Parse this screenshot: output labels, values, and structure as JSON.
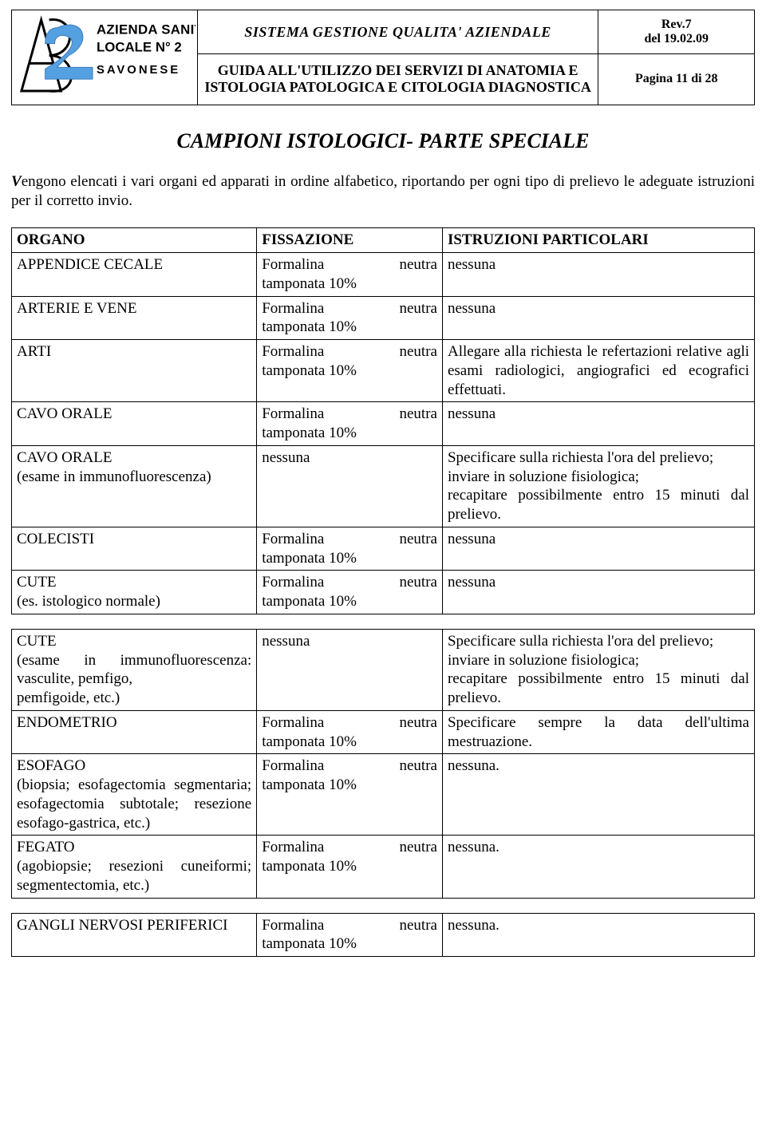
{
  "header": {
    "logo": {
      "line1": "AZIENDA SANITARIA",
      "line2": "LOCALE N° 2",
      "line3": "SAVONESE"
    },
    "system_title": "SISTEMA GESTIONE  QUALITA' AZIENDALE",
    "guide_title_line1": "GUIDA ALL'UTILIZZO DEI SERVIZI DI ANATOMIA E",
    "guide_title_line2": "ISTOLOGIA PATOLOGICA E CITOLOGIA DIAGNOSTICA",
    "rev": "Rev.7",
    "rev_date": "del 19.02.09",
    "page": "Pagina 11 di 28"
  },
  "main_title": "CAMPIONI ISTOLOGICI- PARTE SPECIALE",
  "intro_dropcap": "V",
  "intro_text": "engono elencati i vari organi ed apparati in ordine alfabetico, riportando per ogni tipo di prelievo le adeguate istruzioni per il corretto invio.",
  "columns": {
    "organo": "ORGANO",
    "fissazione": "FISSAZIONE",
    "istruzioni": "ISTRUZIONI PARTICOLARI"
  },
  "fiss_line1_a": "Formalina",
  "fiss_line1_b": "neutra",
  "fiss_line2": "tamponata 10%",
  "fiss_nessuna": "nessuna",
  "tables": [
    {
      "rows": [
        {
          "organo": "APPENDICE CECALE",
          "fiss": "formalin",
          "istr": "nessuna",
          "justify": false
        },
        {
          "organo": "ARTERIE E VENE",
          "fiss": "formalin",
          "istr": "nessuna",
          "justify": false
        },
        {
          "organo": "ARTI",
          "fiss": "formalin",
          "istr": "Allegare alla richiesta le refertazioni relative agli esami radiologici, angiografici ed ecografici effettuati.",
          "justify": true
        },
        {
          "organo": "CAVO ORALE",
          "fiss": "formalin",
          "istr": "nessuna",
          "justify": false
        },
        {
          "organo": "CAVO ORALE\n(esame in immunofluorescenza)",
          "fiss": "nessuna",
          "istr": "Specificare sulla richiesta l'ora del prelievo;\ninviare in soluzione fisiologica;\nrecapitare possibilmente entro 15 minuti dal prelievo.",
          "justify": true
        },
        {
          "organo": "COLECISTI",
          "fiss": "formalin",
          "istr": "nessuna",
          "justify": false
        },
        {
          "organo": "CUTE\n(es. istologico normale)",
          "fiss": "formalin",
          "istr": "nessuna",
          "justify": false
        }
      ]
    },
    {
      "rows": [
        {
          "organo": "CUTE\n(esame in immunofluorescenza: vasculite, pemfigo,\npemfigoide, etc.)",
          "organo_justify": true,
          "fiss": "nessuna",
          "istr": "Specificare sulla richiesta l'ora del prelievo;\ninviare in soluzione fisiologica;\nrecapitare possibilmente entro 15 minuti dal prelievo.",
          "justify": true
        },
        {
          "organo": "ENDOMETRIO",
          "fiss": "formalin",
          "istr": "Specificare sempre la data dell'ultima mestruazione.",
          "justify": true
        },
        {
          "organo": "ESOFAGO\n(biopsia; esofagectomia segmentaria; esofagectomia subtotale; resezione esofago-gastrica, etc.)",
          "organo_justify": true,
          "fiss": "formalin",
          "istr": "nessuna.",
          "justify": false
        },
        {
          "organo": "FEGATO\n(agobiopsie; resezioni cuneiformi; segmentectomia, etc.)",
          "organo_justify": true,
          "fiss": "formalin",
          "istr": "nessuna.",
          "justify": false
        }
      ]
    },
    {
      "rows": [
        {
          "organo": "GANGLI NERVOSI PERIFERICI",
          "organo_justify": true,
          "fiss": "formalin",
          "istr": "nessuna.",
          "justify": false
        }
      ]
    }
  ]
}
